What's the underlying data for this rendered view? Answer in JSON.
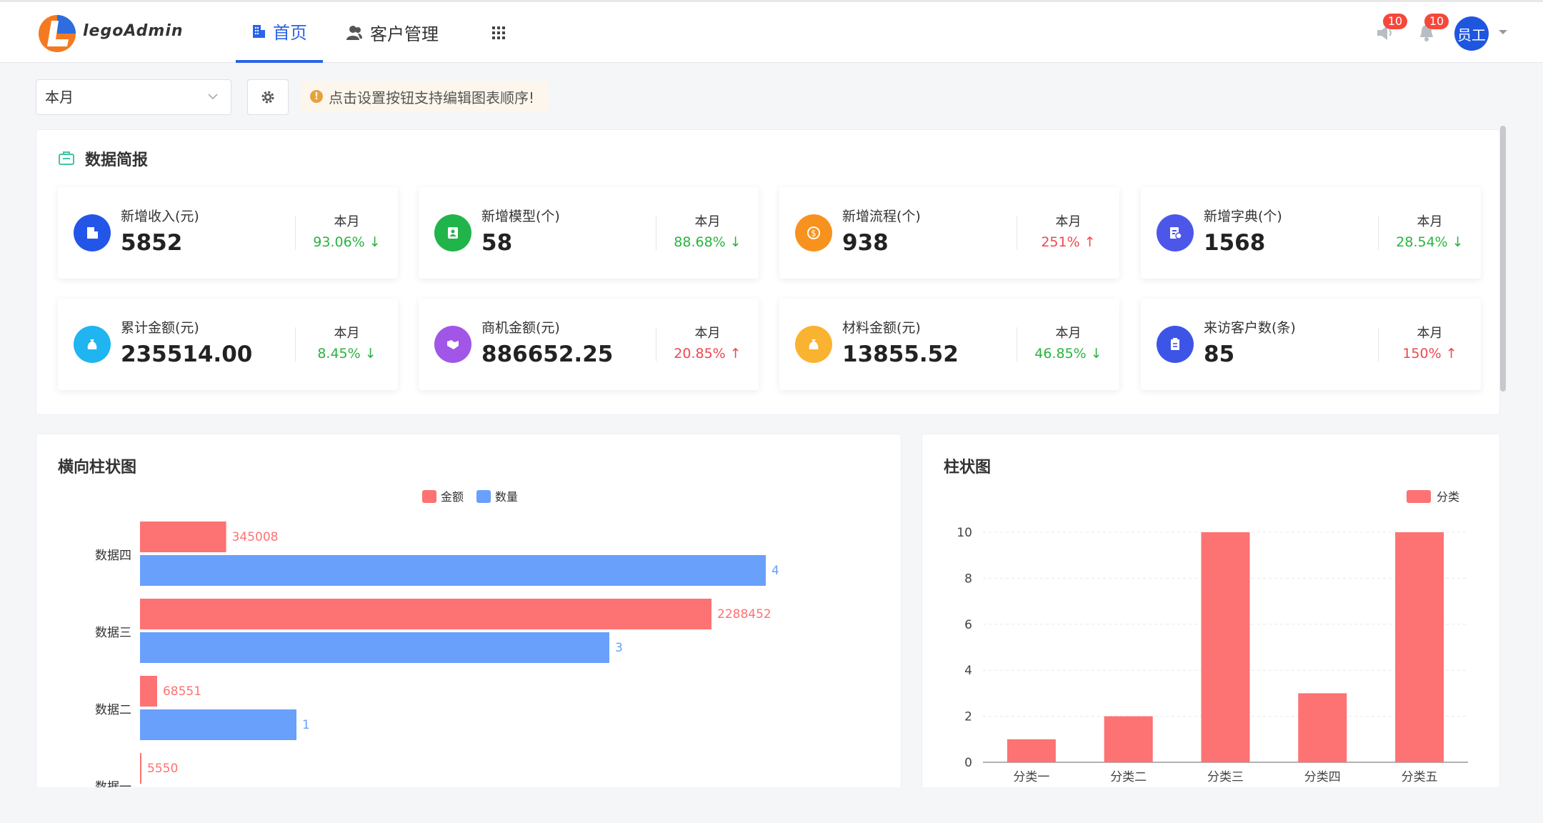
{
  "app": {
    "logo_text": "legoAdmin"
  },
  "nav": [
    {
      "label": "首页",
      "icon": "building-icon",
      "active": true
    },
    {
      "label": "客户管理",
      "icon": "user-icon",
      "active": false
    },
    {
      "label": "",
      "icon": "apps-grid-icon",
      "active": false
    }
  ],
  "header": {
    "announce_badge": "10",
    "bell_badge": "10",
    "avatar_text": "员工"
  },
  "toolbar": {
    "period_select": "本月",
    "tip": "点击设置按钮支持编辑图表顺序!"
  },
  "summary": {
    "title": "数据简报",
    "cards": [
      {
        "label": "新增收入(元)",
        "value": "5852",
        "period": "本月",
        "pct": "93.06%",
        "trend": "down",
        "color": "#2356e8",
        "icon": "building-icon"
      },
      {
        "label": "新增模型(个)",
        "value": "58",
        "period": "本月",
        "pct": "88.68%",
        "trend": "down",
        "color": "#21b44a",
        "icon": "contact-card-icon"
      },
      {
        "label": "新增流程(个)",
        "value": "938",
        "period": "本月",
        "pct": "251%",
        "trend": "up",
        "color": "#f8921e",
        "icon": "dollar-icon"
      },
      {
        "label": "新增字典(个)",
        "value": "1568",
        "period": "本月",
        "pct": "28.54%",
        "trend": "down",
        "color": "#4c57ea",
        "icon": "dictionary-icon"
      },
      {
        "label": "累计金额(元)",
        "value": "235514.00",
        "period": "本月",
        "pct": "8.45%",
        "trend": "down",
        "color": "#20b4f0",
        "icon": "money-bag-icon"
      },
      {
        "label": "商机金额(元)",
        "value": "886652.25",
        "period": "本月",
        "pct": "20.85%",
        "trend": "up",
        "color": "#a156e8",
        "icon": "handshake-icon"
      },
      {
        "label": "材料金额(元)",
        "value": "13855.52",
        "period": "本月",
        "pct": "46.85%",
        "trend": "down",
        "color": "#fab330",
        "icon": "money-bag-icon"
      },
      {
        "label": "来访客户数(条)",
        "value": "85",
        "period": "本月",
        "pct": "150%",
        "trend": "up",
        "color": "#3c55e6",
        "icon": "clipboard-icon"
      }
    ]
  },
  "chart_data": [
    {
      "type": "bar",
      "orientation": "horizontal",
      "title": "横向柱状图",
      "categories": [
        "数据四",
        "数据三",
        "数据二",
        "数据一"
      ],
      "series": [
        {
          "name": "金额",
          "color": "#fd7272",
          "values": [
            345008,
            2288452,
            68551,
            5550
          ]
        },
        {
          "name": "数量",
          "color": "#68a0fc",
          "values": [
            4,
            3,
            1,
            null
          ]
        }
      ],
      "legend": "top-center"
    },
    {
      "type": "bar",
      "title": "柱状图",
      "categories": [
        "分类一",
        "分类二",
        "分类三",
        "分类四",
        "分类五"
      ],
      "series": [
        {
          "name": "分类",
          "color": "#fd7272",
          "values": [
            1,
            2,
            10,
            3,
            10
          ]
        }
      ],
      "yticks": [
        0,
        2,
        4,
        6,
        8,
        10
      ],
      "ylim": [
        0,
        10
      ],
      "grid": true,
      "legend": "top-right"
    }
  ]
}
